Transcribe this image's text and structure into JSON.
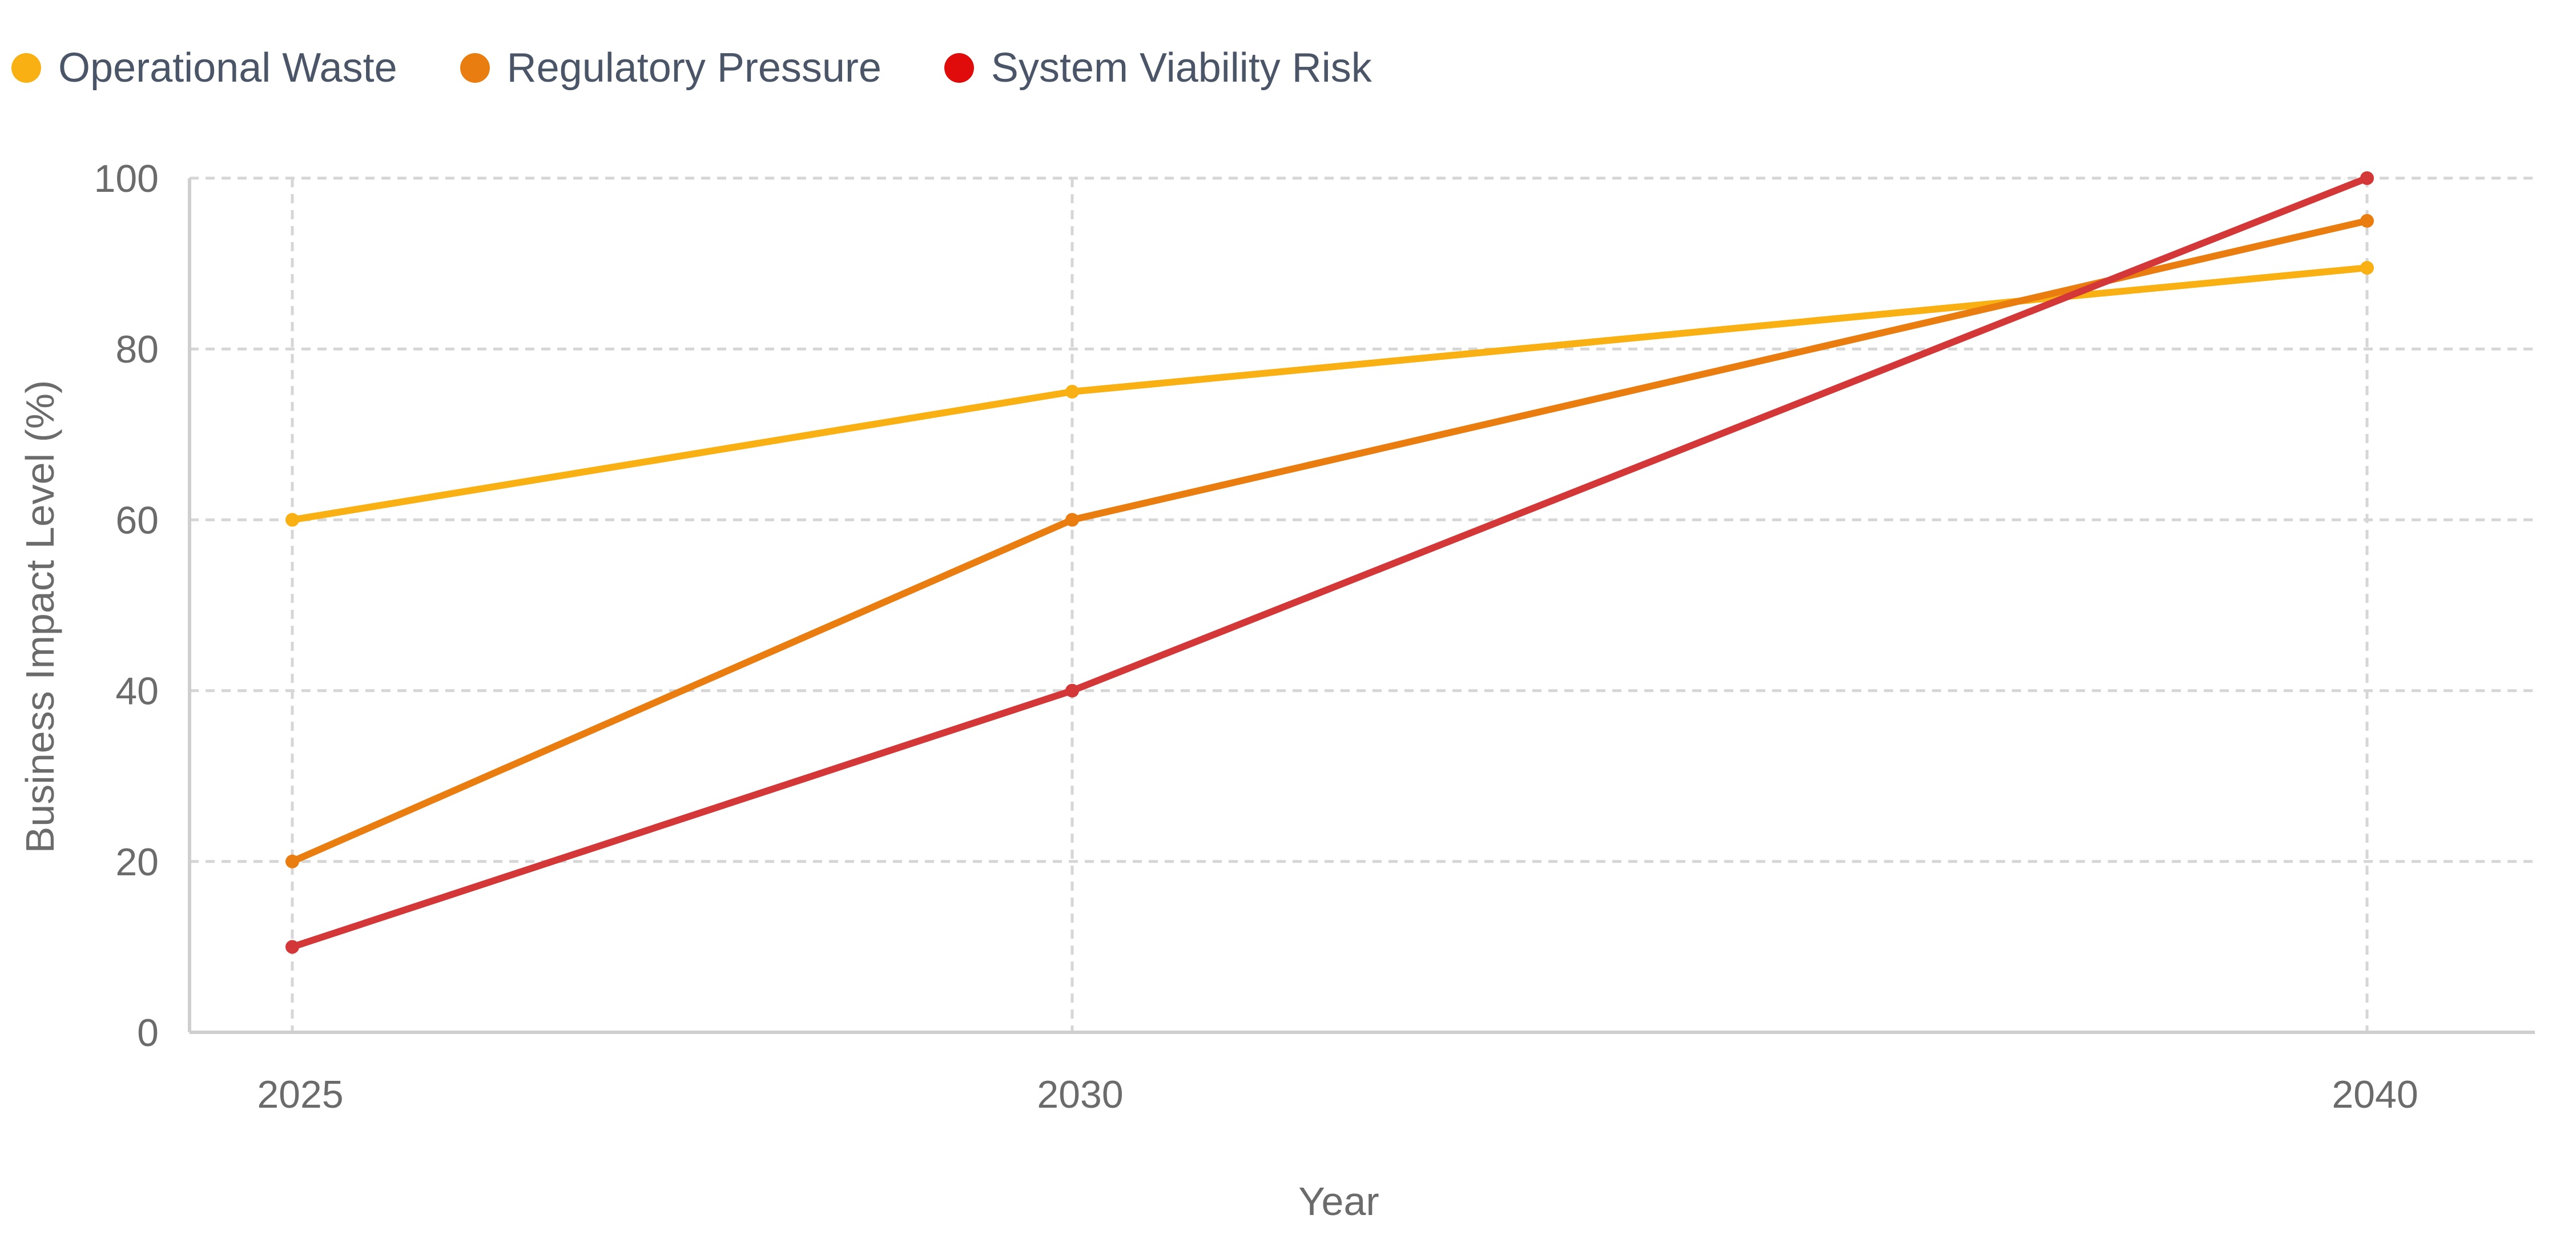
{
  "chart_data": {
    "type": "line",
    "title": "",
    "xlabel": "Year",
    "ylabel": "Business Impact Level (%)",
    "x": [
      2025,
      2030,
      2040
    ],
    "x_tick_labels": [
      "2025",
      "2030",
      "2040"
    ],
    "ylim": [
      0,
      100
    ],
    "y_ticks": [
      0,
      20,
      40,
      60,
      80,
      100
    ],
    "grid": true,
    "legend_position": "top-left",
    "series": [
      {
        "name": "Operational Waste",
        "color": "#f9b012",
        "values": [
          60,
          75,
          89.5
        ]
      },
      {
        "name": "Regulatory Pressure",
        "color": "#ea7d10",
        "values": [
          20,
          60,
          95
        ]
      },
      {
        "name": "System Viability Risk",
        "color": "#d33737",
        "legend_color": "#e00b0b",
        "values": [
          10,
          40,
          100
        ]
      }
    ]
  }
}
